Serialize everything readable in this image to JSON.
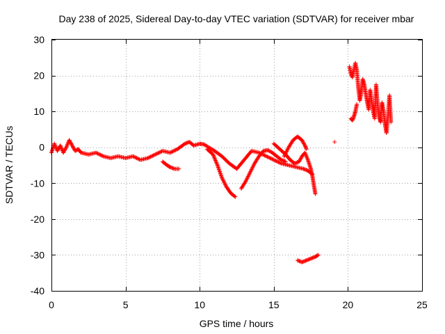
{
  "chart_data": {
    "type": "scatter",
    "title": "Day 238 of 2025, Sidereal Day-to-day VTEC variation (SDTVAR) for receiver mbar",
    "xlabel": "GPS time / hours",
    "ylabel": "SDTVAR / TECUs",
    "xlim": [
      0,
      25
    ],
    "ylim": [
      -40,
      30
    ],
    "xticks": [
      0,
      5,
      10,
      15,
      20,
      25
    ],
    "yticks": [
      -40,
      -30,
      -20,
      -10,
      0,
      10,
      20,
      30
    ],
    "xtick_labels": [
      "0",
      "5",
      "10",
      "15",
      "20",
      "25"
    ],
    "ytick_labels": [
      "-40",
      "-30",
      "-20",
      "-10",
      "0",
      "10",
      "20",
      "30"
    ],
    "grid": true,
    "marker": "+",
    "color": "#ff0000",
    "series": [
      {
        "name": "SDTVAR",
        "segments": [
          [
            [
              0.0,
              -1.5
            ],
            [
              0.2,
              1.0
            ],
            [
              0.4,
              -1.0
            ],
            [
              0.6,
              0.5
            ],
            [
              0.8,
              -1.5
            ],
            [
              1.0,
              0.0
            ],
            [
              1.2,
              2.0
            ],
            [
              1.4,
              0.5
            ],
            [
              1.6,
              -1.0
            ],
            [
              1.8,
              -0.5
            ],
            [
              2.0,
              -1.5
            ],
            [
              2.5,
              -2.0
            ],
            [
              3.0,
              -1.5
            ],
            [
              3.5,
              -2.5
            ],
            [
              4.0,
              -3.0
            ],
            [
              4.5,
              -2.5
            ],
            [
              5.0,
              -3.0
            ],
            [
              5.5,
              -2.5
            ],
            [
              6.0,
              -3.5
            ],
            [
              6.5,
              -3.0
            ],
            [
              7.0,
              -2.0
            ],
            [
              7.5,
              -1.0
            ],
            [
              8.0,
              -1.5
            ],
            [
              8.5,
              -0.5
            ],
            [
              9.0,
              1.0
            ],
            [
              9.3,
              1.5
            ],
            [
              9.6,
              0.5
            ],
            [
              10.0,
              1.0
            ],
            [
              10.3,
              0.8
            ],
            [
              10.6,
              0.0
            ],
            [
              11.0,
              -1.0
            ],
            [
              11.5,
              -2.5
            ],
            [
              12.0,
              -4.5
            ],
            [
              12.5,
              -6.0
            ],
            [
              13.0,
              -3.5
            ],
            [
              13.5,
              -1.0
            ],
            [
              14.0,
              -1.5
            ],
            [
              14.5,
              -2.5
            ],
            [
              15.0,
              -3.5
            ],
            [
              15.5,
              -4.5
            ],
            [
              16.0,
              -5.0
            ],
            [
              16.5,
              -5.5
            ],
            [
              17.0,
              -6.0
            ],
            [
              17.3,
              -6.5
            ],
            [
              17.6,
              -7.5
            ]
          ],
          [
            [
              7.5,
              -4.0
            ],
            [
              7.8,
              -5.0
            ],
            [
              8.0,
              -5.5
            ],
            [
              8.3,
              -6.0
            ],
            [
              8.6,
              -6.0
            ]
          ],
          [
            [
              10.5,
              -0.5
            ],
            [
              10.9,
              -2.0
            ],
            [
              11.2,
              -5.0
            ],
            [
              11.5,
              -8.5
            ],
            [
              11.8,
              -11.0
            ],
            [
              12.1,
              -12.8
            ],
            [
              12.4,
              -13.8
            ]
          ],
          [
            [
              12.8,
              -11.5
            ],
            [
              13.1,
              -9.5
            ],
            [
              13.4,
              -7.0
            ],
            [
              13.7,
              -4.5
            ],
            [
              14.0,
              -2.5
            ],
            [
              14.3,
              -1.0
            ],
            [
              14.6,
              -0.8
            ],
            [
              14.9,
              -1.5
            ],
            [
              15.2,
              -2.5
            ],
            [
              15.5,
              -3.5
            ],
            [
              15.8,
              -4.0
            ]
          ],
          [
            [
              15.0,
              1.0
            ],
            [
              15.4,
              -0.5
            ],
            [
              15.8,
              -2.0
            ],
            [
              16.1,
              -3.5
            ],
            [
              16.4,
              -4.5
            ],
            [
              16.7,
              -4.0
            ],
            [
              16.9,
              -2.5
            ],
            [
              17.1,
              -1.5
            ],
            [
              17.3,
              -3.5
            ],
            [
              17.5,
              -6.0
            ],
            [
              17.6,
              -8.0
            ],
            [
              17.7,
              -10.5
            ],
            [
              17.8,
              -13.0
            ]
          ],
          [
            [
              15.7,
              -2.5
            ],
            [
              16.0,
              0.0
            ],
            [
              16.3,
              2.0
            ],
            [
              16.6,
              3.0
            ],
            [
              16.9,
              2.0
            ],
            [
              17.1,
              0.5
            ],
            [
              17.2,
              -0.5
            ]
          ],
          [
            [
              16.6,
              -31.5
            ],
            [
              16.9,
              -32.0
            ],
            [
              17.2,
              -31.5
            ],
            [
              17.5,
              -31.0
            ],
            [
              17.8,
              -30.5
            ],
            [
              18.0,
              -30.0
            ]
          ],
          [
            [
              19.1,
              1.5
            ]
          ],
          [
            [
              20.1,
              22.5
            ],
            [
              20.2,
              20.5
            ],
            [
              20.3,
              19.5
            ],
            [
              20.5,
              23.5
            ],
            [
              20.6,
              21.5
            ],
            [
              20.7,
              16.5
            ],
            [
              20.8,
              13.0
            ],
            [
              20.9,
              15.5
            ],
            [
              21.0,
              19.0
            ],
            [
              21.1,
              17.5
            ],
            [
              21.2,
              15.0
            ],
            [
              21.3,
              12.5
            ],
            [
              21.4,
              10.5
            ],
            [
              21.5,
              16.0
            ],
            [
              21.6,
              13.0
            ],
            [
              21.7,
              10.0
            ],
            [
              21.8,
              8.0
            ],
            [
              21.9,
              17.5
            ],
            [
              22.0,
              12.0
            ],
            [
              22.1,
              8.5
            ],
            [
              22.2,
              7.0
            ],
            [
              22.3,
              12.5
            ],
            [
              22.4,
              10.0
            ],
            [
              22.5,
              6.5
            ],
            [
              22.6,
              4.0
            ],
            [
              22.7,
              8.5
            ],
            [
              22.8,
              14.5
            ],
            [
              22.9,
              7.0
            ]
          ],
          [
            [
              20.2,
              8.0
            ],
            [
              20.3,
              7.5
            ],
            [
              20.4,
              8.5
            ],
            [
              20.5,
              10.0
            ],
            [
              20.6,
              12.0
            ]
          ]
        ]
      }
    ]
  }
}
